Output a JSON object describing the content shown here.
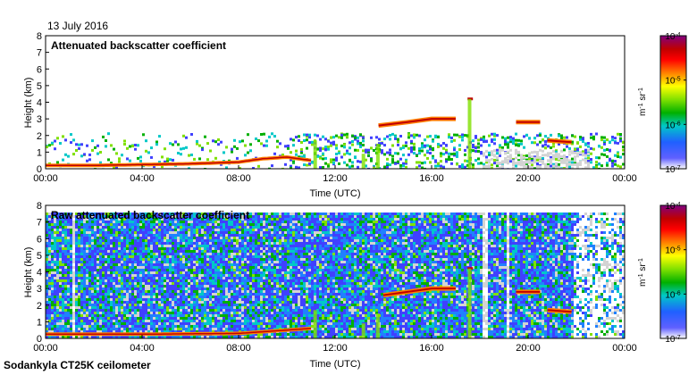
{
  "header": {
    "date": "13 July 2016"
  },
  "footer": {
    "instrument": "Sodankyla CT25K ceilometer"
  },
  "colors": {
    "colormap": [
      "#ffffff",
      "#4040ff",
      "#2080ff",
      "#00c8c8",
      "#00b000",
      "#80e000",
      "#ffff00",
      "#ff8000",
      "#ff0000",
      "#c00000",
      "#800080"
    ],
    "missing": "#d3d3d3"
  },
  "chart_data": [
    {
      "type": "heatmap",
      "title": "Attenuated backscatter coefficient",
      "xlabel": "Time (UTC)",
      "ylabel": "Height (km)",
      "xlim": [
        "00:00",
        "24:00"
      ],
      "ylim": [
        0,
        8
      ],
      "xticks": [
        "00:00",
        "04:00",
        "08:00",
        "12:00",
        "16:00",
        "20:00",
        "00:00"
      ],
      "yticks": [
        "0",
        "1",
        "2",
        "3",
        "4",
        "5",
        "6",
        "7",
        "8"
      ],
      "colorbar": {
        "label": "m-1 sr-1",
        "scale": "log",
        "range": [
          1e-07,
          0.0001
        ],
        "ticks": [
          "10-7",
          "10-6",
          "10-5",
          "10-4"
        ]
      },
      "surface_layer_km": [
        {
          "t": 0,
          "h": 0.2
        },
        {
          "t": 2,
          "h": 0.2
        },
        {
          "t": 4,
          "h": 0.25
        },
        {
          "t": 6,
          "h": 0.3
        },
        {
          "t": 8,
          "h": 0.4
        },
        {
          "t": 9,
          "h": 0.6
        },
        {
          "t": 10,
          "h": 0.7
        },
        {
          "t": 11,
          "h": 0.5
        }
      ],
      "cloud_layer_km": [
        {
          "t": 13.8,
          "h": 2.6
        },
        {
          "t": 15,
          "h": 2.8
        },
        {
          "t": 16,
          "h": 3.0
        },
        {
          "t": 17,
          "h": 3.0
        },
        {
          "t": 17.6,
          "h": 4.2
        },
        {
          "t": 19.5,
          "h": 2.8
        },
        {
          "t": 20.5,
          "h": 2.8
        },
        {
          "t": 20.8,
          "h": 1.7
        },
        {
          "t": 21.8,
          "h": 1.6
        }
      ]
    },
    {
      "type": "heatmap",
      "title": "Raw attenuated backscatter coefficient",
      "xlabel": "Time (UTC)",
      "ylabel": "Height (km)",
      "xlim": [
        "00:00",
        "24:00"
      ],
      "ylim": [
        0,
        8
      ],
      "xticks": [
        "00:00",
        "04:00",
        "08:00",
        "12:00",
        "16:00",
        "20:00",
        "00:00"
      ],
      "yticks": [
        "0",
        "1",
        "2",
        "3",
        "4",
        "5",
        "6",
        "7",
        "8"
      ],
      "colorbar": {
        "label": "m-1 sr-1",
        "scale": "log",
        "range": [
          1e-07,
          0.0001
        ],
        "ticks": [
          "10-7",
          "10-6",
          "10-5",
          "10-4"
        ]
      },
      "noise_top_km": 7.5,
      "surface_layer_km": [
        {
          "t": 0,
          "h": 0.25
        },
        {
          "t": 4,
          "h": 0.25
        },
        {
          "t": 8,
          "h": 0.3
        },
        {
          "t": 10,
          "h": 0.5
        },
        {
          "t": 11,
          "h": 0.6
        }
      ],
      "cloud_layer_km": [
        {
          "t": 14,
          "h": 2.6
        },
        {
          "t": 15,
          "h": 2.8
        },
        {
          "t": 16,
          "h": 3.0
        },
        {
          "t": 17,
          "h": 3.0
        },
        {
          "t": 17.6,
          "h": 4.2
        },
        {
          "t": 19.5,
          "h": 2.8
        },
        {
          "t": 20.5,
          "h": 2.8
        },
        {
          "t": 20.8,
          "h": 1.7
        },
        {
          "t": 21.8,
          "h": 1.6
        }
      ]
    }
  ]
}
